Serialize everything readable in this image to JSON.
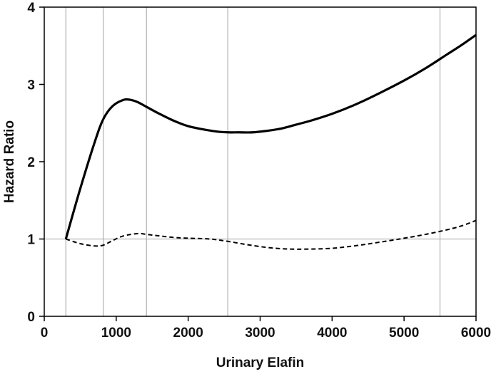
{
  "chart_data": {
    "type": "line",
    "title": "",
    "xlabel": "Urinary Elafin",
    "ylabel": "Hazard Ratio",
    "xlim": [
      0,
      6000
    ],
    "ylim": [
      0,
      4
    ],
    "x_ticks": [
      0,
      1000,
      2000,
      3000,
      4000,
      5000,
      6000
    ],
    "y_ticks": [
      0,
      1,
      2,
      3,
      4
    ],
    "x_tick_labels": [
      "0",
      "1000",
      "2000",
      "3000",
      "4000",
      "5000",
      "6000"
    ],
    "y_tick_labels": [
      "0",
      "1",
      "2",
      "3",
      "4"
    ],
    "reference_lines": {
      "vertical_x": [
        300,
        820,
        1420,
        2550,
        5500
      ],
      "horizontal_y": [
        1
      ]
    },
    "legend": "none",
    "grid": false,
    "series": [
      {
        "style": "solid",
        "color": "#000000",
        "x": [
          300,
          500,
          700,
          820,
          950,
          1100,
          1200,
          1300,
          1420,
          1600,
          1800,
          2000,
          2200,
          2400,
          2550,
          2700,
          2900,
          3100,
          3300,
          3500,
          3700,
          4000,
          4300,
          4600,
          5000,
          5300,
          5600,
          5800,
          6000
        ],
        "y": [
          1.0,
          1.65,
          2.25,
          2.55,
          2.72,
          2.8,
          2.8,
          2.77,
          2.71,
          2.62,
          2.53,
          2.46,
          2.42,
          2.39,
          2.38,
          2.38,
          2.38,
          2.4,
          2.43,
          2.48,
          2.53,
          2.62,
          2.73,
          2.86,
          3.05,
          3.21,
          3.39,
          3.51,
          3.64
        ]
      },
      {
        "style": "dashed",
        "color": "#000000",
        "x": [
          300,
          500,
          700,
          820,
          950,
          1100,
          1300,
          1420,
          1600,
          1800,
          2000,
          2300,
          2550,
          2800,
          3100,
          3400,
          3700,
          4000,
          4300,
          4600,
          5000,
          5300,
          5600,
          5800,
          6000
        ],
        "y": [
          1.0,
          0.94,
          0.91,
          0.92,
          0.98,
          1.04,
          1.07,
          1.06,
          1.04,
          1.02,
          1.01,
          1.0,
          0.97,
          0.93,
          0.89,
          0.87,
          0.87,
          0.88,
          0.91,
          0.95,
          1.01,
          1.06,
          1.12,
          1.17,
          1.24
        ]
      }
    ]
  }
}
